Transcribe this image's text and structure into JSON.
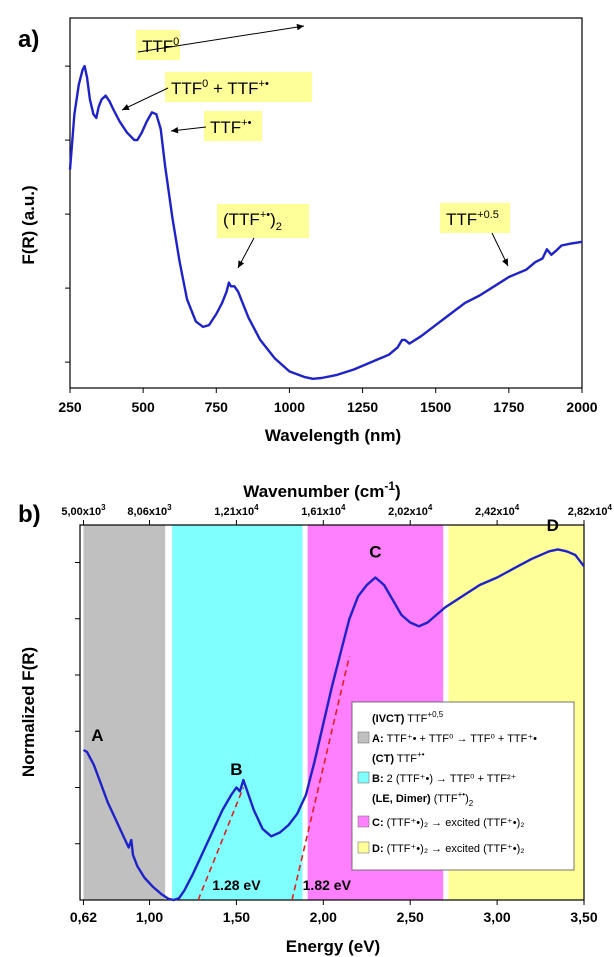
{
  "chart_data": [
    {
      "type": "line",
      "panel_label": "a)",
      "xlabel": "Wavelength (nm)",
      "ylabel": "F(R) (a.u.)",
      "xlim": [
        250,
        2000
      ],
      "ylim": [
        0,
        1
      ],
      "x_ticks": [
        "250",
        "500",
        "750",
        "1000",
        "1250",
        "1500",
        "1750",
        "2000"
      ],
      "x_tick_values": [
        250,
        500,
        750,
        1000,
        1250,
        1500,
        1750,
        2000
      ],
      "y_tick_values": [
        0.07,
        0.27,
        0.47,
        0.67,
        0.87
      ],
      "grid": false,
      "line_color": "#1f22c8",
      "annotation_color": "#ffff99",
      "series": [
        {
          "x": [
            250,
            265,
            280,
            293,
            300,
            308,
            318,
            330,
            340,
            348,
            358,
            372,
            385,
            400,
            420,
            445,
            470,
            480,
            495,
            512,
            530,
            545,
            560,
            575,
            600,
            625,
            650,
            680,
            705,
            725,
            750,
            770,
            785,
            793,
            800,
            812,
            825,
            840,
            860,
            900,
            950,
            1000,
            1050,
            1080,
            1110,
            1160,
            1220,
            1280,
            1340,
            1370,
            1385,
            1395,
            1410,
            1450,
            1500,
            1550,
            1600,
            1650,
            1700,
            1750,
            1780,
            1810,
            1840,
            1865,
            1880,
            1895,
            1910,
            1930,
            1960,
            2000
          ],
          "y": [
            0.59,
            0.74,
            0.82,
            0.86,
            0.87,
            0.84,
            0.78,
            0.74,
            0.73,
            0.76,
            0.78,
            0.79,
            0.775,
            0.75,
            0.72,
            0.69,
            0.67,
            0.67,
            0.69,
            0.72,
            0.745,
            0.74,
            0.7,
            0.6,
            0.46,
            0.34,
            0.24,
            0.18,
            0.165,
            0.17,
            0.2,
            0.23,
            0.26,
            0.285,
            0.275,
            0.275,
            0.26,
            0.23,
            0.19,
            0.13,
            0.08,
            0.045,
            0.03,
            0.025,
            0.027,
            0.035,
            0.05,
            0.07,
            0.09,
            0.11,
            0.13,
            0.13,
            0.12,
            0.14,
            0.17,
            0.2,
            0.23,
            0.25,
            0.275,
            0.3,
            0.31,
            0.32,
            0.34,
            0.35,
            0.375,
            0.36,
            0.37,
            0.385,
            0.39,
            0.395
          ]
        }
      ],
      "annotations": [
        {
          "text": "TTF",
          "sup": "0",
          "x": 300
        },
        {
          "text": "TTF",
          "sup": "0",
          "text2": " + TTF",
          "sup2": "+•",
          "x": 372
        },
        {
          "text": "TTF",
          "sup": "+•",
          "x": 520
        },
        {
          "text": "(TTF",
          "sup": "+•",
          "text2": ")",
          "sub2": "2",
          "x": 795
        },
        {
          "text": "TTF",
          "sup": "+0.5",
          "x": 1745
        }
      ]
    },
    {
      "type": "line",
      "panel_label": "b)",
      "xlabel": "Energy (eV)",
      "ylabel": "Normalized F(R)",
      "top_axis_label": "Wavenumber (cm",
      "top_axis_label_sup": "-1",
      "top_axis_label_end": ")",
      "xlim": [
        0.6,
        3.5
      ],
      "ylim": [
        0,
        1
      ],
      "x_ticks": [
        "0,62",
        "1,00",
        "1,50",
        "2,00",
        "2,50",
        "3,00",
        "3,50"
      ],
      "x_tick_values": [
        0.62,
        1.0,
        1.5,
        2.0,
        2.5,
        3.0,
        3.5
      ],
      "top_ticks": [
        "5,00x10",
        "8,06x10",
        "1,21x10",
        "1,61x10",
        "2,02x10",
        "2,42x10",
        "2,82x10"
      ],
      "top_tick_sups": [
        "3",
        "3",
        "4",
        "4",
        "4",
        "4",
        "4"
      ],
      "top_tick_values": [
        0.62,
        1.0,
        1.5,
        2.0,
        2.5,
        3.0,
        3.5
      ],
      "y_tick_values": [
        0.15,
        0.3,
        0.45,
        0.6,
        0.75,
        0.9
      ],
      "grid": false,
      "line_color": "#1f22c8",
      "bands": [
        {
          "from": 0.62,
          "to": 1.09,
          "color": "#c0c0c0"
        },
        {
          "from": 1.13,
          "to": 1.88,
          "color": "#80ffff"
        },
        {
          "from": 1.91,
          "to": 2.69,
          "color": "#ff80ff"
        },
        {
          "from": 2.72,
          "to": 3.5,
          "color": "#ffff99"
        }
      ],
      "series": [
        {
          "x": [
            0.62,
            0.64,
            0.68,
            0.72,
            0.76,
            0.8,
            0.85,
            0.88,
            0.895,
            0.905,
            0.93,
            0.97,
            1.02,
            1.07,
            1.11,
            1.14,
            1.17,
            1.2,
            1.25,
            1.3,
            1.36,
            1.42,
            1.47,
            1.5,
            1.52,
            1.54,
            1.555,
            1.57,
            1.6,
            1.65,
            1.7,
            1.75,
            1.8,
            1.85,
            1.9,
            1.95,
            2.0,
            2.05,
            2.1,
            2.15,
            2.2,
            2.25,
            2.3,
            2.35,
            2.4,
            2.45,
            2.5,
            2.55,
            2.6,
            2.65,
            2.7,
            2.8,
            2.9,
            3.0,
            3.1,
            3.2,
            3.3,
            3.35,
            3.4,
            3.45,
            3.5
          ],
          "y": [
            0.4,
            0.395,
            0.36,
            0.31,
            0.26,
            0.22,
            0.17,
            0.14,
            0.16,
            0.12,
            0.09,
            0.06,
            0.035,
            0.015,
            0.003,
            0.0,
            0.005,
            0.025,
            0.07,
            0.12,
            0.18,
            0.24,
            0.28,
            0.3,
            0.29,
            0.32,
            0.3,
            0.28,
            0.24,
            0.19,
            0.17,
            0.18,
            0.2,
            0.23,
            0.28,
            0.37,
            0.47,
            0.57,
            0.66,
            0.75,
            0.81,
            0.84,
            0.86,
            0.84,
            0.8,
            0.76,
            0.74,
            0.73,
            0.74,
            0.76,
            0.78,
            0.81,
            0.84,
            0.86,
            0.885,
            0.91,
            0.93,
            0.935,
            0.93,
            0.92,
            0.89
          ]
        }
      ],
      "fit_lines": [
        {
          "from": [
            1.28,
            0.0
          ],
          "to": [
            1.54,
            0.3
          ]
        },
        {
          "from": [
            1.82,
            0.0
          ],
          "to": [
            2.15,
            0.65
          ]
        }
      ],
      "fit_color": "#e02020",
      "gap_labels": [
        {
          "text": "1.28 eV",
          "x": 1.5,
          "y": 0.04
        },
        {
          "text": "1.82 eV",
          "x": 2.02,
          "y": 0.04
        }
      ],
      "peak_labels": [
        {
          "text": "A",
          "x": 0.7,
          "y": 0.44
        },
        {
          "text": "B",
          "x": 1.5,
          "y": 0.35
        },
        {
          "text": "C",
          "x": 2.3,
          "y": 0.93
        },
        {
          "text": "D",
          "x": 3.32,
          "y": 1.0
        }
      ],
      "legend": {
        "placement": "right",
        "headers": [
          {
            "bold": "(IVCT)",
            "rest": " TTF",
            "sup": "+0,5"
          },
          {
            "bold": "(CT)",
            "rest": " TTF",
            "sup": "+•"
          },
          {
            "bold": "(LE, Dimer)",
            "rest": " (TTF",
            "sup": "+•",
            "rest2": ")",
            "sub2": "2"
          }
        ],
        "entries": [
          {
            "key": "A:",
            "text": "TTF⁺• + TTF⁰ → TTF⁰ + TTF⁺•",
            "color": "#c0c0c0"
          },
          {
            "key": "B:",
            "text": "2 (TTF⁺•) → TTF⁰ + TTF²⁺",
            "color": "#80ffff"
          },
          {
            "key": "C:",
            "text": "(TTF⁺•)₂ → excited (TTF⁺•)₂",
            "color": "#ff80ff"
          },
          {
            "key": "D:",
            "text": "(TTF⁺•)₂ → excited (TTF⁺•)₂",
            "color": "#ffff99"
          }
        ]
      }
    }
  ]
}
